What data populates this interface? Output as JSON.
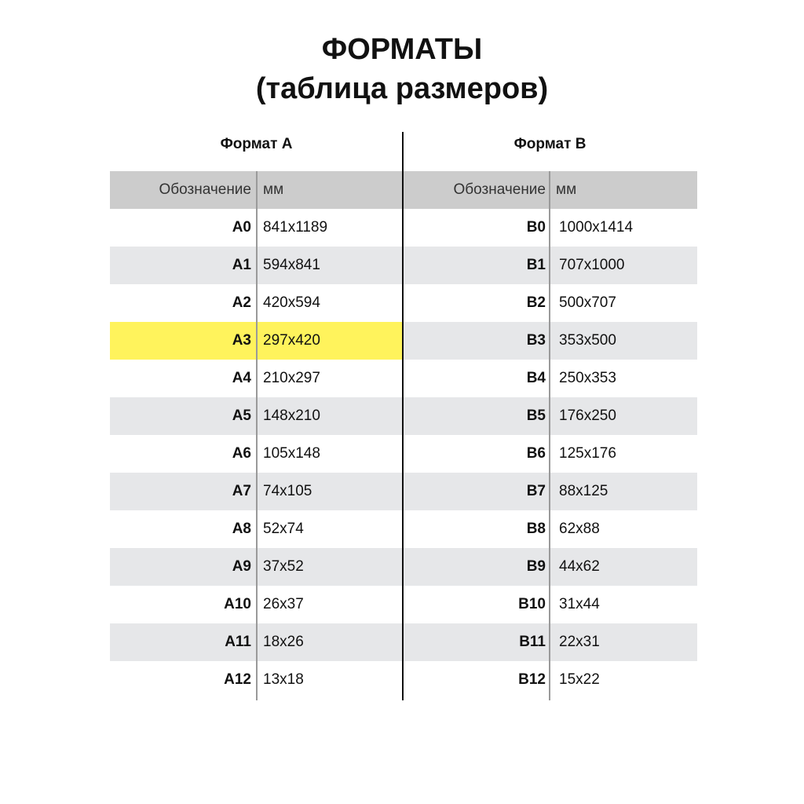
{
  "title_line1": "ФОРМАТЫ",
  "title_line2": "(таблица размеров)",
  "colors": {
    "header_bg": "#cccccc",
    "stripe_bg": "#e6e7e9",
    "highlight": "#fff35c"
  },
  "format_a": {
    "heading": "Формат А",
    "col_code": "Обозначение",
    "col_mm": "мм",
    "highlighted": "A3",
    "rows": [
      [
        "A0",
        "841x1189"
      ],
      [
        "A1",
        "594x841"
      ],
      [
        "A2",
        "420x594"
      ],
      [
        "A3",
        "297x420"
      ],
      [
        "A4",
        "210x297"
      ],
      [
        "A5",
        "148x210"
      ],
      [
        "A6",
        "105x148"
      ],
      [
        "A7",
        "74x105"
      ],
      [
        "A8",
        "52x74"
      ],
      [
        "A9",
        "37x52"
      ],
      [
        "A10",
        "26x37"
      ],
      [
        "A11",
        "18x26"
      ],
      [
        "A12",
        "13x18"
      ]
    ]
  },
  "format_b": {
    "heading": "Формат В",
    "col_code": "Обозначение",
    "col_mm": "мм",
    "rows": [
      [
        "B0",
        "1000x1414"
      ],
      [
        "B1",
        "707x1000"
      ],
      [
        "B2",
        "500x707"
      ],
      [
        "B3",
        "353x500"
      ],
      [
        "B4",
        "250x353"
      ],
      [
        "B5",
        "176x250"
      ],
      [
        "B6",
        "125x176"
      ],
      [
        "B7",
        "88x125"
      ],
      [
        "B8",
        "62x88"
      ],
      [
        "B9",
        "44x62"
      ],
      [
        "B10",
        "31x44"
      ],
      [
        "B11",
        "22x31"
      ],
      [
        "B12",
        "15x22"
      ]
    ]
  }
}
